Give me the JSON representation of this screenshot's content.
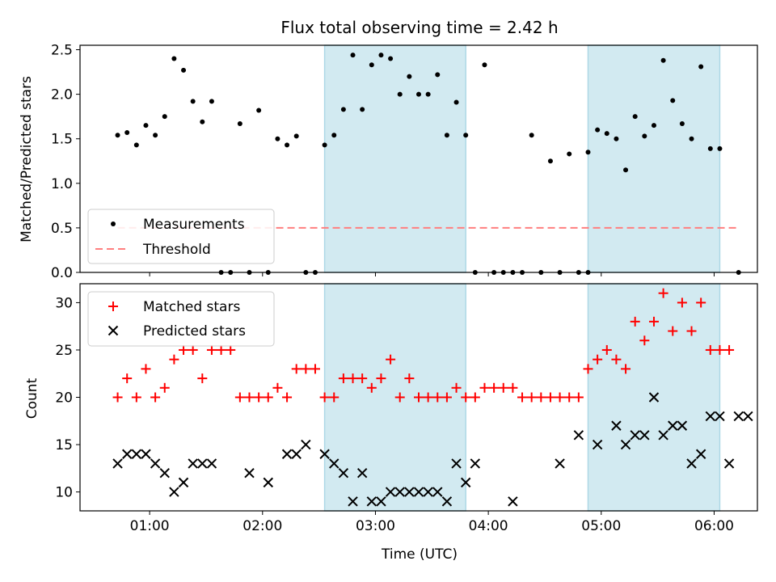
{
  "title": "Flux total observing time = 2.42 h",
  "colors": {
    "band": "#add8e6",
    "measurement": "#000000",
    "threshold": "#ff7f7f",
    "matched": "#ff0000",
    "predicted": "#000000"
  },
  "chart_data": [
    {
      "type": "scatter",
      "panel": "top",
      "ylabel": "Matched/Predicted stars",
      "xlabel": "",
      "ylim": [
        0,
        2.55
      ],
      "xlim": [
        "00:23",
        "06:23"
      ],
      "yticks": [
        "0.0",
        "0.5",
        "1.0",
        "1.5",
        "2.0",
        "2.5"
      ],
      "shaded_intervals": [
        [
          "02:33",
          "03:48"
        ],
        [
          "04:53",
          "06:03"
        ]
      ],
      "legend_position": "lower-left",
      "legend": {
        "measurements": "Measurements",
        "threshold": "Threshold"
      },
      "threshold": {
        "name": "Threshold",
        "y": 0.5,
        "x_range": [
          "00:43",
          "06:13"
        ]
      },
      "series": [
        {
          "name": "Measurements",
          "marker": "dot",
          "points": [
            [
              "00:43",
              1.54
            ],
            [
              "00:48",
              1.57
            ],
            [
              "00:53",
              1.43
            ],
            [
              "00:58",
              1.65
            ],
            [
              "01:03",
              1.54
            ],
            [
              "01:08",
              1.75
            ],
            [
              "01:13",
              2.4
            ],
            [
              "01:18",
              2.27
            ],
            [
              "01:23",
              1.92
            ],
            [
              "01:28",
              1.69
            ],
            [
              "01:33",
              1.92
            ],
            [
              "01:38",
              0.0
            ],
            [
              "01:43",
              0.0
            ],
            [
              "01:48",
              1.67
            ],
            [
              "01:53",
              0.0
            ],
            [
              "01:58",
              1.82
            ],
            [
              "02:03",
              0.0
            ],
            [
              "02:08",
              1.5
            ],
            [
              "02:13",
              1.43
            ],
            [
              "02:18",
              1.53
            ],
            [
              "02:23",
              0.0
            ],
            [
              "02:28",
              0.0
            ],
            [
              "02:33",
              1.43
            ],
            [
              "02:38",
              1.54
            ],
            [
              "02:43",
              1.83
            ],
            [
              "02:48",
              2.44
            ],
            [
              "02:53",
              1.83
            ],
            [
              "02:58",
              2.33
            ],
            [
              "03:03",
              2.44
            ],
            [
              "03:08",
              2.4
            ],
            [
              "03:13",
              2.0
            ],
            [
              "03:18",
              2.2
            ],
            [
              "03:23",
              2.0
            ],
            [
              "03:28",
              2.0
            ],
            [
              "03:33",
              2.22
            ],
            [
              "03:38",
              1.54
            ],
            [
              "03:43",
              1.91
            ],
            [
              "03:48",
              1.54
            ],
            [
              "03:53",
              0.0
            ],
            [
              "03:58",
              2.33
            ],
            [
              "04:03",
              0.0
            ],
            [
              "04:08",
              0.0
            ],
            [
              "04:13",
              0.0
            ],
            [
              "04:18",
              0.0
            ],
            [
              "04:23",
              1.54
            ],
            [
              "04:28",
              0.0
            ],
            [
              "04:33",
              1.25
            ],
            [
              "04:38",
              0.0
            ],
            [
              "04:43",
              1.33
            ],
            [
              "04:48",
              0.0
            ],
            [
              "04:53",
              0.0
            ],
            [
              "04:53",
              1.35
            ],
            [
              "04:58",
              1.6
            ],
            [
              "05:03",
              1.56
            ],
            [
              "05:08",
              1.5
            ],
            [
              "05:13",
              1.15
            ],
            [
              "05:18",
              1.75
            ],
            [
              "05:23",
              1.53
            ],
            [
              "05:28",
              1.65
            ],
            [
              "05:33",
              2.38
            ],
            [
              "05:38",
              1.93
            ],
            [
              "05:43",
              1.67
            ],
            [
              "05:48",
              1.5
            ],
            [
              "05:53",
              2.31
            ],
            [
              "05:58",
              1.39
            ],
            [
              "06:03",
              1.39
            ],
            [
              "06:13",
              0.0
            ]
          ]
        }
      ]
    },
    {
      "type": "scatter",
      "panel": "bottom",
      "ylabel": "Count",
      "xlabel": "Time (UTC)",
      "ylim": [
        8,
        32
      ],
      "xlim": [
        "00:23",
        "06:23"
      ],
      "yticks": [
        "10",
        "15",
        "20",
        "25",
        "30"
      ],
      "xticks": [
        "01:00",
        "02:00",
        "03:00",
        "04:00",
        "05:00",
        "06:00"
      ],
      "shaded_intervals": [
        [
          "02:33",
          "03:48"
        ],
        [
          "04:53",
          "06:03"
        ]
      ],
      "legend_position": "upper-left",
      "series": [
        {
          "name": "Matched stars",
          "marker": "plus",
          "points": [
            [
              "00:43",
              20
            ],
            [
              "00:48",
              22
            ],
            [
              "00:53",
              20
            ],
            [
              "00:58",
              23
            ],
            [
              "01:03",
              20
            ],
            [
              "01:08",
              21
            ],
            [
              "01:13",
              24
            ],
            [
              "01:18",
              25
            ],
            [
              "01:23",
              25
            ],
            [
              "01:28",
              22
            ],
            [
              "01:33",
              25
            ],
            [
              "01:38",
              25
            ],
            [
              "01:43",
              25
            ],
            [
              "01:48",
              20
            ],
            [
              "01:53",
              20
            ],
            [
              "01:58",
              20
            ],
            [
              "02:03",
              20
            ],
            [
              "02:08",
              21
            ],
            [
              "02:13",
              20
            ],
            [
              "02:18",
              23
            ],
            [
              "02:23",
              23
            ],
            [
              "02:28",
              23
            ],
            [
              "02:33",
              20
            ],
            [
              "02:38",
              20
            ],
            [
              "02:43",
              22
            ],
            [
              "02:48",
              22
            ],
            [
              "02:53",
              22
            ],
            [
              "02:58",
              21
            ],
            [
              "03:03",
              22
            ],
            [
              "03:08",
              24
            ],
            [
              "03:13",
              20
            ],
            [
              "03:18",
              22
            ],
            [
              "03:23",
              20
            ],
            [
              "03:28",
              20
            ],
            [
              "03:33",
              20
            ],
            [
              "03:38",
              20
            ],
            [
              "03:43",
              21
            ],
            [
              "03:48",
              20
            ],
            [
              "03:53",
              20
            ],
            [
              "03:58",
              21
            ],
            [
              "04:03",
              21
            ],
            [
              "04:08",
              21
            ],
            [
              "04:13",
              21
            ],
            [
              "04:18",
              20
            ],
            [
              "04:23",
              20
            ],
            [
              "04:28",
              20
            ],
            [
              "04:33",
              20
            ],
            [
              "04:38",
              20
            ],
            [
              "04:43",
              20
            ],
            [
              "04:48",
              20
            ],
            [
              "04:53",
              23
            ],
            [
              "04:58",
              24
            ],
            [
              "05:03",
              25
            ],
            [
              "05:08",
              24
            ],
            [
              "05:13",
              23
            ],
            [
              "05:18",
              28
            ],
            [
              "05:23",
              26
            ],
            [
              "05:28",
              28
            ],
            [
              "05:33",
              31
            ],
            [
              "05:38",
              27
            ],
            [
              "05:43",
              30
            ],
            [
              "05:48",
              27
            ],
            [
              "05:53",
              30
            ],
            [
              "05:58",
              25
            ],
            [
              "06:03",
              25
            ],
            [
              "06:08",
              25
            ]
          ]
        },
        {
          "name": "Predicted stars",
          "marker": "x",
          "points": [
            [
              "00:43",
              13
            ],
            [
              "00:48",
              14
            ],
            [
              "00:53",
              14
            ],
            [
              "00:58",
              14
            ],
            [
              "01:03",
              13
            ],
            [
              "01:08",
              12
            ],
            [
              "01:13",
              10
            ],
            [
              "01:18",
              11
            ],
            [
              "01:23",
              13
            ],
            [
              "01:28",
              13
            ],
            [
              "01:33",
              13
            ],
            [
              "01:53",
              12
            ],
            [
              "02:03",
              11
            ],
            [
              "02:13",
              14
            ],
            [
              "02:18",
              14
            ],
            [
              "02:23",
              15
            ],
            [
              "02:33",
              14
            ],
            [
              "02:38",
              13
            ],
            [
              "02:43",
              12
            ],
            [
              "02:48",
              9
            ],
            [
              "02:53",
              12
            ],
            [
              "02:58",
              9
            ],
            [
              "03:03",
              9
            ],
            [
              "03:08",
              10
            ],
            [
              "03:13",
              10
            ],
            [
              "03:18",
              10
            ],
            [
              "03:23",
              10
            ],
            [
              "03:28",
              10
            ],
            [
              "03:33",
              10
            ],
            [
              "03:38",
              9
            ],
            [
              "03:43",
              13
            ],
            [
              "03:48",
              11
            ],
            [
              "03:53",
              13
            ],
            [
              "04:13",
              9
            ],
            [
              "04:38",
              13
            ],
            [
              "04:48",
              16
            ],
            [
              "04:58",
              15
            ],
            [
              "05:08",
              17
            ],
            [
              "05:13",
              15
            ],
            [
              "05:18",
              16
            ],
            [
              "05:23",
              16
            ],
            [
              "05:28",
              20
            ],
            [
              "05:33",
              16
            ],
            [
              "05:38",
              17
            ],
            [
              "05:43",
              17
            ],
            [
              "05:48",
              13
            ],
            [
              "05:53",
              14
            ],
            [
              "05:58",
              18
            ],
            [
              "06:03",
              18
            ],
            [
              "06:08",
              13
            ],
            [
              "06:13",
              18
            ],
            [
              "06:18",
              18
            ]
          ]
        }
      ]
    }
  ]
}
